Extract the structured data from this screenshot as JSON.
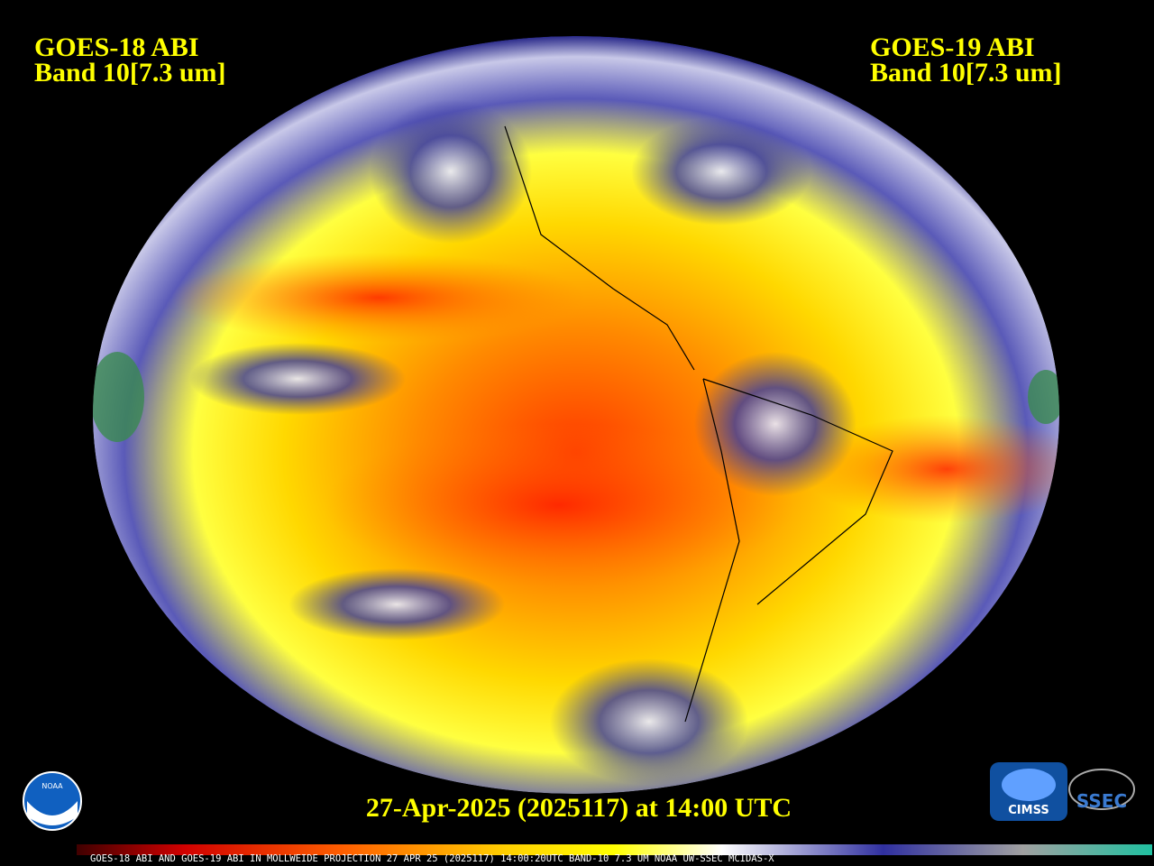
{
  "header": {
    "left": {
      "satellite": "GOES-18 ABI",
      "band": "Band 10[7.3 um]"
    },
    "right": {
      "satellite": "GOES-19 ABI",
      "band": "Band 10[7.3 um]"
    }
  },
  "timestamp": "27-Apr-2025 (2025117) at 14:00 UTC",
  "colorbar_caption": "GOES-18 ABI AND GOES-19 ABI IN MOLLWEIDE PROJECTION 27 APR 25 (2025117) 14:00:20UTC BAND-10 7.3 UM NOAA UW-SSEC MCIDAS-X",
  "logos": {
    "noaa": "NOAA",
    "cimss": "CIMSS",
    "ssec": "SSEC"
  }
}
